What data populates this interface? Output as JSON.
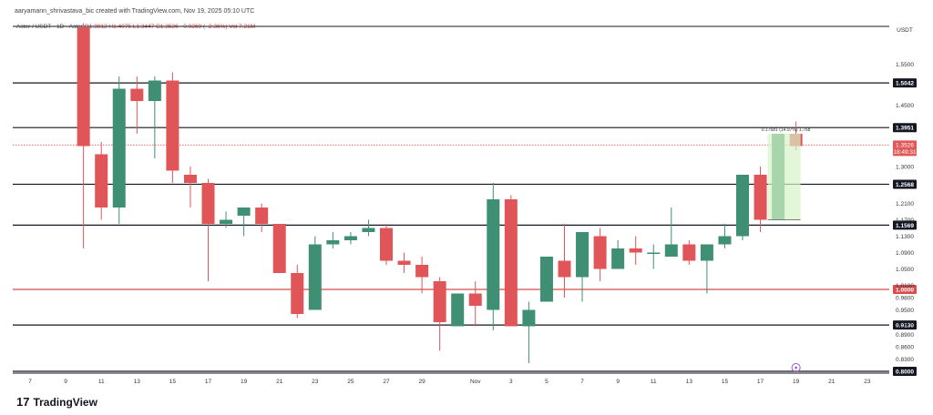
{
  "header": {
    "text": "aaryamann_shrivastava_bic created with TradingView.com, Nov 19, 2025 05:10 UTC"
  },
  "legend": {
    "symbol": "Aster / USDT · 1D · Aster",
    "ohlc": "O1.3812  H1.4075  L1.3447  C1.3526  −0.0269 (−2.36%)  Vol 7.21M"
  },
  "brand": {
    "logo": "17",
    "name": "TradingView"
  },
  "chart_data": {
    "type": "candlestick",
    "currency": "USDT",
    "y_range": [
      0.8,
      1.64
    ],
    "y_ticks": [
      "1.5500",
      "1.4500",
      "1.3000",
      "1.2100",
      "1.1700",
      "1.1300",
      "1.0900",
      "1.0500",
      "1.0100",
      "0.9800",
      "0.9500",
      "0.9200",
      "0.8900",
      "0.8600",
      "0.8300"
    ],
    "x_labels": [
      {
        "label": "7",
        "i": 0
      },
      {
        "label": "9",
        "i": 2
      },
      {
        "label": "11",
        "i": 4
      },
      {
        "label": "13",
        "i": 6
      },
      {
        "label": "15",
        "i": 8
      },
      {
        "label": "17",
        "i": 10
      },
      {
        "label": "19",
        "i": 12
      },
      {
        "label": "21",
        "i": 14
      },
      {
        "label": "23",
        "i": 16
      },
      {
        "label": "25",
        "i": 18
      },
      {
        "label": "27",
        "i": 20
      },
      {
        "label": "29",
        "i": 22
      },
      {
        "label": "Nov",
        "i": 25
      },
      {
        "label": "3",
        "i": 27
      },
      {
        "label": "5",
        "i": 29
      },
      {
        "label": "7",
        "i": 31
      },
      {
        "label": "9",
        "i": 33
      },
      {
        "label": "11",
        "i": 35
      },
      {
        "label": "13",
        "i": 37
      },
      {
        "label": "15",
        "i": 39
      },
      {
        "label": "17",
        "i": 41
      },
      {
        "label": "19",
        "i": 43
      },
      {
        "label": "21",
        "i": 45
      },
      {
        "label": "23",
        "i": 47
      }
    ],
    "candles": [
      {
        "i": 3,
        "o": 1.64,
        "h": 1.65,
        "l": 1.1,
        "c": 1.35
      },
      {
        "i": 4,
        "o": 1.33,
        "h": 1.36,
        "l": 1.17,
        "c": 1.2
      },
      {
        "i": 5,
        "o": 1.2,
        "h": 1.52,
        "l": 1.16,
        "c": 1.49
      },
      {
        "i": 6,
        "o": 1.49,
        "h": 1.52,
        "l": 1.38,
        "c": 1.46
      },
      {
        "i": 7,
        "o": 1.46,
        "h": 1.52,
        "l": 1.32,
        "c": 1.51
      },
      {
        "i": 8,
        "o": 1.51,
        "h": 1.53,
        "l": 1.26,
        "c": 1.29
      },
      {
        "i": 9,
        "o": 1.28,
        "h": 1.3,
        "l": 1.2,
        "c": 1.26
      },
      {
        "i": 10,
        "o": 1.26,
        "h": 1.27,
        "l": 1.02,
        "c": 1.16
      },
      {
        "i": 11,
        "o": 1.16,
        "h": 1.19,
        "l": 1.15,
        "c": 1.17
      },
      {
        "i": 12,
        "o": 1.18,
        "h": 1.2,
        "l": 1.13,
        "c": 1.2
      },
      {
        "i": 13,
        "o": 1.2,
        "h": 1.21,
        "l": 1.14,
        "c": 1.16
      },
      {
        "i": 14,
        "o": 1.16,
        "h": 1.16,
        "l": 1.04,
        "c": 1.04
      },
      {
        "i": 15,
        "o": 1.04,
        "h": 1.06,
        "l": 0.93,
        "c": 0.94
      },
      {
        "i": 16,
        "o": 0.95,
        "h": 1.13,
        "l": 0.95,
        "c": 1.11
      },
      {
        "i": 17,
        "o": 1.11,
        "h": 1.14,
        "l": 1.1,
        "c": 1.12
      },
      {
        "i": 18,
        "o": 1.12,
        "h": 1.14,
        "l": 1.11,
        "c": 1.13
      },
      {
        "i": 19,
        "o": 1.14,
        "h": 1.17,
        "l": 1.13,
        "c": 1.15
      },
      {
        "i": 20,
        "o": 1.15,
        "h": 1.16,
        "l": 1.06,
        "c": 1.07
      },
      {
        "i": 21,
        "o": 1.07,
        "h": 1.09,
        "l": 1.04,
        "c": 1.06
      },
      {
        "i": 22,
        "o": 1.06,
        "h": 1.08,
        "l": 0.99,
        "c": 1.03
      },
      {
        "i": 23,
        "o": 1.02,
        "h": 1.03,
        "l": 0.85,
        "c": 0.92
      },
      {
        "i": 24,
        "o": 0.91,
        "h": 0.99,
        "l": 0.91,
        "c": 0.99
      },
      {
        "i": 25,
        "o": 0.99,
        "h": 1.02,
        "l": 0.91,
        "c": 0.96
      },
      {
        "i": 26,
        "o": 0.95,
        "h": 1.26,
        "l": 0.9,
        "c": 1.22
      },
      {
        "i": 27,
        "o": 1.22,
        "h": 1.23,
        "l": 0.91,
        "c": 0.91
      },
      {
        "i": 28,
        "o": 0.91,
        "h": 0.97,
        "l": 0.82,
        "c": 0.95
      },
      {
        "i": 29,
        "o": 0.97,
        "h": 1.08,
        "l": 0.97,
        "c": 1.08
      },
      {
        "i": 30,
        "o": 1.07,
        "h": 1.16,
        "l": 0.98,
        "c": 1.03
      },
      {
        "i": 31,
        "o": 1.03,
        "h": 1.14,
        "l": 0.97,
        "c": 1.14
      },
      {
        "i": 32,
        "o": 1.13,
        "h": 1.15,
        "l": 1.02,
        "c": 1.05
      },
      {
        "i": 33,
        "o": 1.05,
        "h": 1.12,
        "l": 1.05,
        "c": 1.1
      },
      {
        "i": 34,
        "o": 1.1,
        "h": 1.13,
        "l": 1.06,
        "c": 1.09
      },
      {
        "i": 35,
        "o": 1.09,
        "h": 1.11,
        "l": 1.05,
        "c": 1.09
      },
      {
        "i": 36,
        "o": 1.08,
        "h": 1.2,
        "l": 1.08,
        "c": 1.11
      },
      {
        "i": 37,
        "o": 1.11,
        "h": 1.12,
        "l": 1.06,
        "c": 1.07
      },
      {
        "i": 38,
        "o": 1.07,
        "h": 1.11,
        "l": 0.99,
        "c": 1.11
      },
      {
        "i": 39,
        "o": 1.11,
        "h": 1.16,
        "l": 1.1,
        "c": 1.13
      },
      {
        "i": 40,
        "o": 1.13,
        "h": 1.28,
        "l": 1.12,
        "c": 1.28
      },
      {
        "i": 41,
        "o": 1.28,
        "h": 1.3,
        "l": 1.14,
        "c": 1.17
      },
      {
        "i": 42,
        "o": 1.17,
        "h": 1.38,
        "l": 1.17,
        "c": 1.38
      },
      {
        "i": 43,
        "o": 1.38,
        "h": 1.41,
        "l": 1.34,
        "c": 1.35
      }
    ],
    "levels": [
      {
        "value": 1.5042,
        "label": "1.5042",
        "color": "#131722"
      },
      {
        "value": 1.3951,
        "label": "1.3951",
        "color": "#131722"
      },
      {
        "value": 1.2568,
        "label": "1.2568",
        "color": "#131722"
      },
      {
        "value": 1.1569,
        "label": "1.1569",
        "color": "#131722"
      },
      {
        "value": 1.0,
        "label": "1.0000",
        "color": "#d84c4c"
      },
      {
        "value": 0.913,
        "label": "0.9130",
        "color": "#131722"
      },
      {
        "value": 0.8,
        "label": "0.8000",
        "color": "#131722"
      }
    ],
    "current": {
      "value": 1.3526,
      "label": "1.3526",
      "countdown": "18:49:31",
      "color": "#e05858"
    },
    "annotation": "0.17681 (14.97%) 1,768",
    "colors": {
      "up": "#3f8f74",
      "down": "#e05558",
      "grid": "#ffffff",
      "measure": "#d7f2c6"
    }
  }
}
